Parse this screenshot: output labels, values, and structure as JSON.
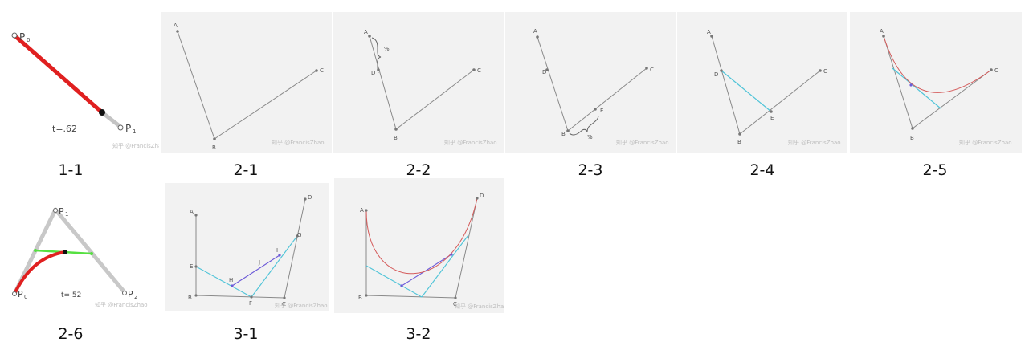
{
  "figures": [
    {
      "id": "1-1",
      "caption": "1-1",
      "labels": {
        "p0": "P",
        "p0_sub": "0",
        "p1": "P",
        "p1_sub": "1",
        "t": "t=.62"
      },
      "watermark": "知乎 @FrancisZhao"
    },
    {
      "id": "2-1",
      "caption": "2-1",
      "labels": {
        "a": "A",
        "b": "B",
        "c": "C"
      },
      "watermark": "知乎 @FrancisZhao"
    },
    {
      "id": "2-2",
      "caption": "2-2",
      "labels": {
        "a": "A",
        "b": "B",
        "c": "C",
        "d": "D",
        "pct": "%"
      },
      "watermark": "知乎 @FrancisZhao"
    },
    {
      "id": "2-3",
      "caption": "2-3",
      "labels": {
        "a": "A",
        "b": "B",
        "c": "C",
        "d": "D",
        "e": "E",
        "pct": "%"
      },
      "watermark": "知乎 @FrancisZhao"
    },
    {
      "id": "2-4",
      "caption": "2-4",
      "labels": {
        "a": "A",
        "b": "B",
        "c": "C",
        "d": "D",
        "e": "E"
      },
      "watermark": "知乎 @FrancisZhao"
    },
    {
      "id": "2-5",
      "caption": "2-5",
      "labels": {
        "a": "A",
        "b": "B",
        "c": "C"
      },
      "watermark": "知乎 @FrancisZhao"
    },
    {
      "id": "2-6",
      "caption": "2-6",
      "labels": {
        "p0": "P",
        "p0_sub": "0",
        "p1": "P",
        "p1_sub": "1",
        "p2": "P",
        "p2_sub": "2",
        "t": "t=.52"
      },
      "watermark": "知乎 @FrancisZhao"
    },
    {
      "id": "3-1",
      "caption": "3-1",
      "labels": {
        "a": "A",
        "b": "B",
        "c": "C",
        "d": "D",
        "e": "E",
        "f": "F",
        "g": "G",
        "h": "H",
        "i": "I",
        "j": "J"
      },
      "watermark": "知乎 @FrancisZhao"
    },
    {
      "id": "3-2",
      "caption": "3-2",
      "labels": {
        "a": "A",
        "b": "B",
        "c": "C",
        "d": "D"
      },
      "watermark": "知乎 @FrancisZhao"
    }
  ],
  "colors": {
    "curve_red": "#e02020",
    "curve_thin_red": "#d45a5a",
    "cyan": "#4fc4d8",
    "purple": "#6c5ad8",
    "gray_line": "#8a8a8a",
    "green": "#55e040",
    "panel_bg": "#f2f2f2"
  }
}
